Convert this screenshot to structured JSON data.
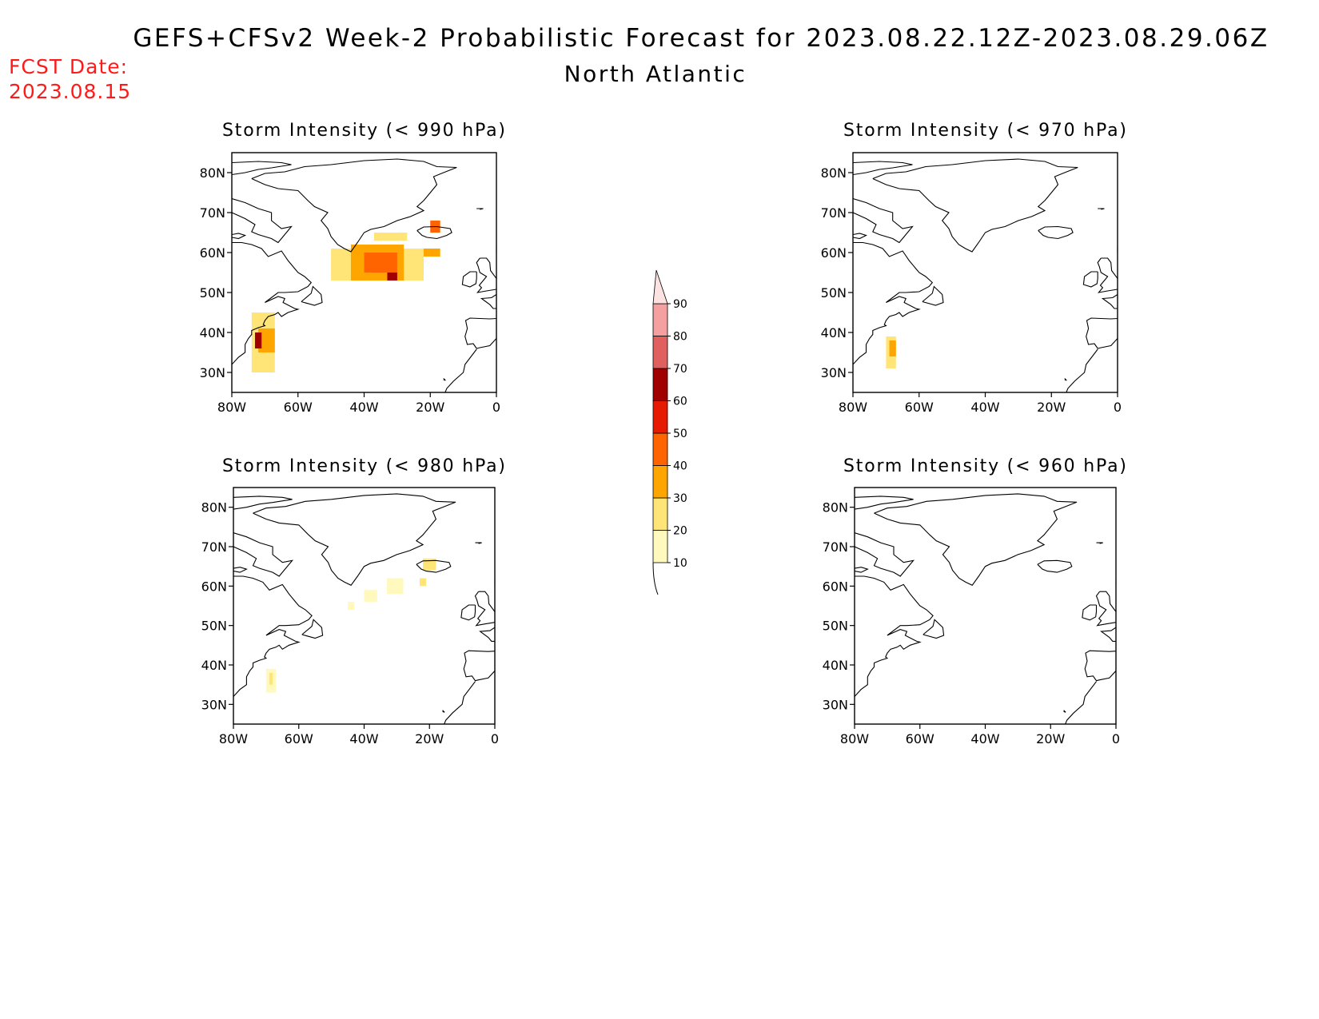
{
  "figure": {
    "title": "GEFS+CFSv2 Week-2 Probabilistic Forecast for 2023.08.22.12Z-2023.08.29.06Z",
    "region": "North Atlantic",
    "forecast_date_label": "FCST Date:",
    "forecast_date": "2023.08.15"
  },
  "map": {
    "longitude_range": [
      -80,
      0
    ],
    "latitude_range": [
      25,
      85
    ],
    "lon_ticks": [
      "80W",
      "60W",
      "40W",
      "20W",
      "0"
    ],
    "lat_ticks": [
      "80N",
      "70N",
      "60N",
      "50N",
      "40N",
      "30N"
    ]
  },
  "panels": [
    {
      "title": "Storm Intensity (< 990 hPa)",
      "shading": [
        {
          "lon": [
            -50,
            -22
          ],
          "lat": [
            53,
            61
          ],
          "probability": 20
        },
        {
          "lon": [
            -44,
            -28
          ],
          "lat": [
            53,
            62
          ],
          "probability": 30
        },
        {
          "lon": [
            -40,
            -30
          ],
          "lat": [
            55,
            60
          ],
          "probability": 40
        },
        {
          "lon": [
            -33,
            -30
          ],
          "lat": [
            53,
            55
          ],
          "probability": 60
        },
        {
          "lon": [
            -37,
            -27
          ],
          "lat": [
            63,
            65
          ],
          "probability": 20
        },
        {
          "lon": [
            -22,
            -17
          ],
          "lat": [
            59,
            61
          ],
          "probability": 30
        },
        {
          "lon": [
            -20,
            -17
          ],
          "lat": [
            65,
            68
          ],
          "probability": 40
        },
        {
          "lon": [
            -74,
            -67
          ],
          "lat": [
            30,
            45
          ],
          "probability": 20
        },
        {
          "lon": [
            -72,
            -67
          ],
          "lat": [
            35,
            41
          ],
          "probability": 30
        },
        {
          "lon": [
            -73,
            -71
          ],
          "lat": [
            36,
            40
          ],
          "probability": 60
        }
      ]
    },
    {
      "title": "Storm Intensity (< 970 hPa)",
      "shading": [
        {
          "lon": [
            -70,
            -67
          ],
          "lat": [
            31,
            39
          ],
          "probability": 20
        },
        {
          "lon": [
            -69,
            -67
          ],
          "lat": [
            34,
            38
          ],
          "probability": 30
        }
      ]
    },
    {
      "title": "Storm Intensity (< 980 hPa)",
      "shading": [
        {
          "lon": [
            -45,
            -43
          ],
          "lat": [
            54,
            56
          ],
          "probability": 10
        },
        {
          "lon": [
            -40,
            -36
          ],
          "lat": [
            56,
            59
          ],
          "probability": 10
        },
        {
          "lon": [
            -33,
            -28
          ],
          "lat": [
            58,
            62
          ],
          "probability": 10
        },
        {
          "lon": [
            -23,
            -21
          ],
          "lat": [
            60,
            62
          ],
          "probability": 20
        },
        {
          "lon": [
            -22,
            -18
          ],
          "lat": [
            64,
            67
          ],
          "probability": 20
        },
        {
          "lon": [
            -70,
            -67
          ],
          "lat": [
            33,
            39
          ],
          "probability": 10
        },
        {
          "lon": [
            -69,
            -68
          ],
          "lat": [
            35,
            38
          ],
          "probability": 20
        }
      ]
    },
    {
      "title": "Storm Intensity (< 960 hPa)",
      "shading": []
    }
  ],
  "colorbar": {
    "labels": [
      "90",
      "80",
      "70",
      "60",
      "50",
      "40",
      "30",
      "20",
      "10"
    ],
    "levels": [
      10,
      20,
      30,
      40,
      50,
      60,
      70,
      80,
      90
    ],
    "colors": [
      "#fff9bd",
      "#ffe478",
      "#ffa500",
      "#ff6400",
      "#e61a00",
      "#a00000",
      "#e06060",
      "#f4a0a0",
      "#fde2e2"
    ]
  }
}
